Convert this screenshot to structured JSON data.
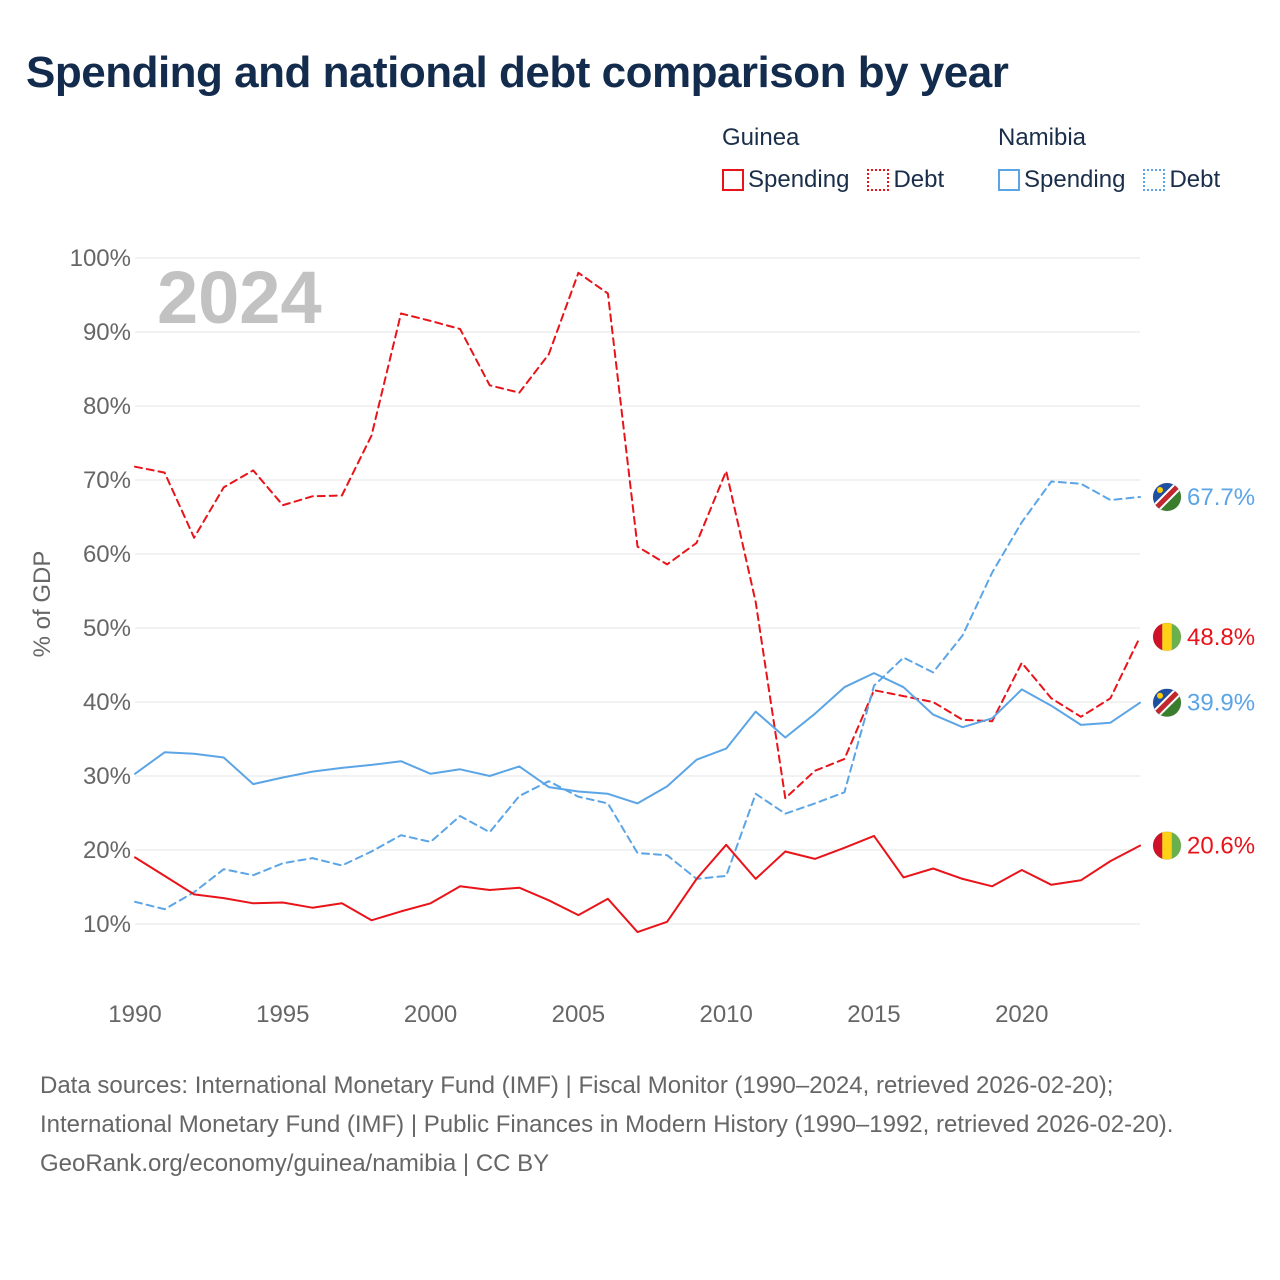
{
  "title": "Spending and national debt comparison by year",
  "legend": {
    "groups": [
      {
        "country": "Guinea",
        "items": [
          {
            "label": "Spending",
            "style": "solid",
            "color": "#e8141a"
          },
          {
            "label": "Debt",
            "style": "dotted",
            "color": "#e8141a"
          }
        ]
      },
      {
        "country": "Namibia",
        "items": [
          {
            "label": "Spending",
            "style": "solid",
            "color": "#5ba5e6"
          },
          {
            "label": "Debt",
            "style": "dotted",
            "color": "#5ba5e6"
          }
        ]
      }
    ]
  },
  "chart_data": {
    "type": "line",
    "title": "Spending and national debt comparison by year",
    "ylabel": "% of GDP",
    "xlabel": "",
    "ylim": [
      0,
      100
    ],
    "y_ticks": [
      10,
      20,
      30,
      40,
      50,
      60,
      70,
      80,
      90,
      100
    ],
    "y_tick_labels": [
      "10%",
      "20%",
      "30%",
      "40%",
      "50%",
      "60%",
      "70%",
      "80%",
      "90%",
      "100%"
    ],
    "xlim": [
      1990,
      2024
    ],
    "x_ticks": [
      1990,
      1995,
      2000,
      2005,
      2010,
      2015,
      2020
    ],
    "x_tick_labels": [
      "1990",
      "1995",
      "2000",
      "2005",
      "2010",
      "2015",
      "2020"
    ],
    "year_watermark": "2024",
    "grid": true,
    "x": [
      1990,
      1991,
      1992,
      1993,
      1994,
      1995,
      1996,
      1997,
      1998,
      1999,
      2000,
      2001,
      2002,
      2003,
      2004,
      2005,
      2006,
      2007,
      2008,
      2009,
      2010,
      2011,
      2012,
      2013,
      2014,
      2015,
      2016,
      2017,
      2018,
      2019,
      2020,
      2021,
      2022,
      2023,
      2024
    ],
    "series": [
      {
        "name": "Guinea Debt",
        "country": "Guinea",
        "measure": "Debt",
        "color": "#e8141a",
        "dash": "dashed",
        "values": [
          71.8,
          71.0,
          62.2,
          69.0,
          71.3,
          66.6,
          67.8,
          67.9,
          76.0,
          92.5,
          91.5,
          90.4,
          82.8,
          81.8,
          87.0,
          98.0,
          95.2,
          61.0,
          58.6,
          61.5,
          71.2,
          53.5,
          27.0,
          30.7,
          32.3,
          41.6,
          40.8,
          40.0,
          37.6,
          37.4,
          45.3,
          40.5,
          38.0,
          40.5,
          48.8
        ],
        "end_label": "48.8%",
        "flag": "guinea"
      },
      {
        "name": "Namibia Debt",
        "country": "Namibia",
        "measure": "Debt",
        "color": "#5ba5e6",
        "dash": "dashed",
        "values": [
          13.0,
          12.0,
          14.3,
          17.4,
          16.6,
          18.2,
          18.9,
          17.9,
          19.8,
          22.0,
          21.1,
          24.6,
          22.4,
          27.3,
          29.3,
          27.2,
          26.3,
          19.6,
          19.3,
          16.1,
          16.5,
          27.6,
          24.9,
          26.3,
          27.8,
          42.2,
          46.0,
          44.0,
          49.0,
          57.5,
          64.3,
          69.8,
          69.5,
          67.3,
          67.7
        ],
        "end_label": "67.7%",
        "flag": "namibia"
      },
      {
        "name": "Namibia Spending",
        "country": "Namibia",
        "measure": "Spending",
        "color": "#5ba5e6",
        "dash": "solid",
        "values": [
          30.3,
          33.2,
          33.0,
          32.5,
          28.9,
          29.8,
          30.6,
          31.1,
          31.5,
          32.0,
          30.3,
          30.9,
          30.0,
          31.3,
          28.5,
          27.9,
          27.6,
          26.3,
          28.6,
          32.2,
          33.7,
          38.7,
          35.2,
          38.4,
          42.0,
          43.9,
          42.0,
          38.3,
          36.6,
          37.8,
          41.7,
          39.5,
          36.9,
          37.2,
          39.9
        ],
        "end_label": "39.9%",
        "flag": "namibia"
      },
      {
        "name": "Guinea Spending",
        "country": "Guinea",
        "measure": "Spending",
        "color": "#e8141a",
        "dash": "solid",
        "values": [
          19.0,
          16.5,
          14.0,
          13.5,
          12.8,
          12.9,
          12.2,
          12.8,
          10.5,
          11.7,
          12.8,
          15.1,
          14.6,
          14.9,
          13.2,
          11.2,
          13.4,
          8.9,
          10.3,
          16.1,
          20.7,
          16.1,
          19.8,
          18.8,
          20.3,
          21.9,
          16.3,
          17.5,
          16.1,
          15.1,
          17.3,
          15.3,
          15.9,
          18.5,
          20.6
        ],
        "end_label": "20.6%",
        "flag": "guinea"
      }
    ]
  },
  "footer": {
    "sources": "Data sources: International Monetary Fund (IMF) | Fiscal Monitor (1990–2024, retrieved 2026-02-20); International Monetary Fund (IMF) | Public Finances in Modern History (1990–1992, retrieved 2026-02-20).",
    "attribution": "GeoRank.org/economy/guinea/namibia | CC BY"
  }
}
